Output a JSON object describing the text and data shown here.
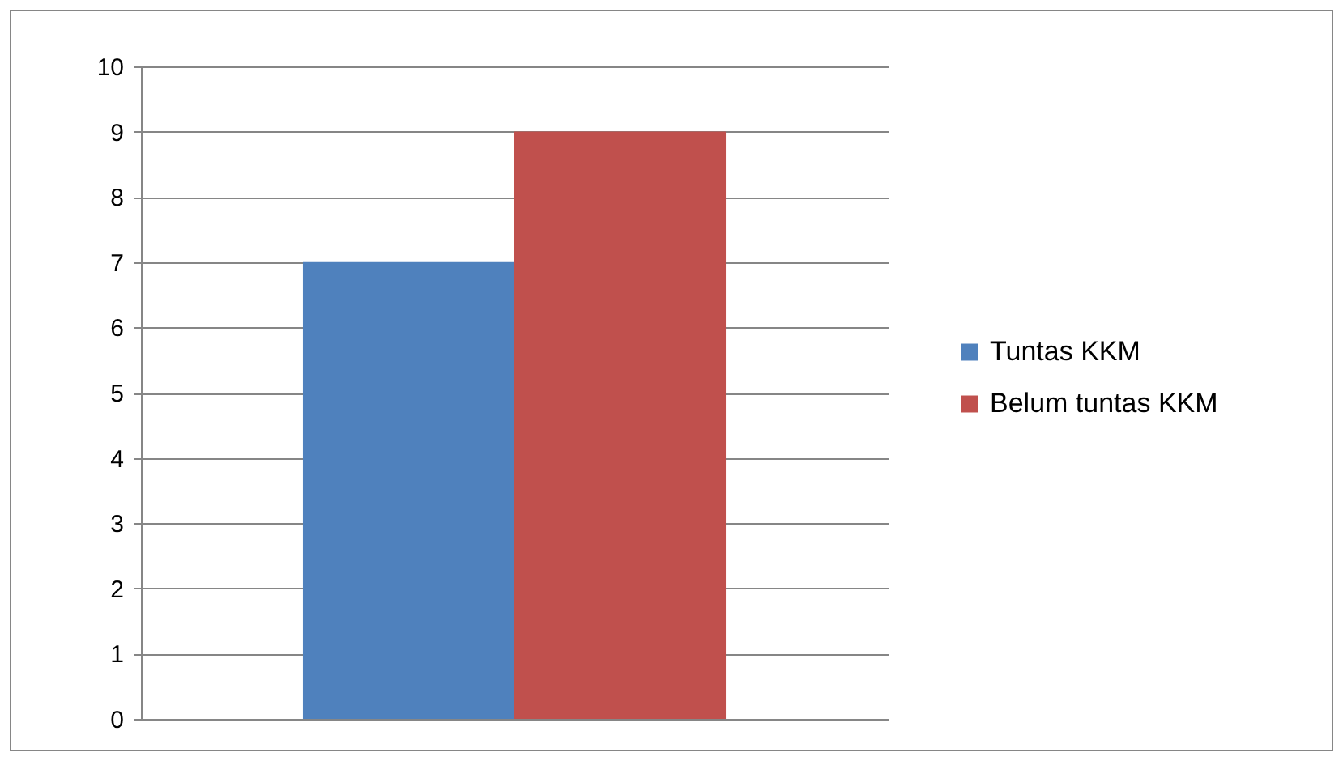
{
  "chart_data": {
    "type": "bar",
    "categories": [
      null
    ],
    "series": [
      {
        "name": "Tuntas KKM",
        "color": "#4f81bd",
        "values": [
          7
        ]
      },
      {
        "name": "Belum tuntas KKM",
        "color": "#c0504d",
        "values": [
          9
        ]
      }
    ],
    "ylim": [
      0,
      10
    ],
    "yticks": [
      0,
      1,
      2,
      3,
      4,
      5,
      6,
      7,
      8,
      9,
      10
    ],
    "grid": "y",
    "legend": "right",
    "tick_labels": "y"
  }
}
